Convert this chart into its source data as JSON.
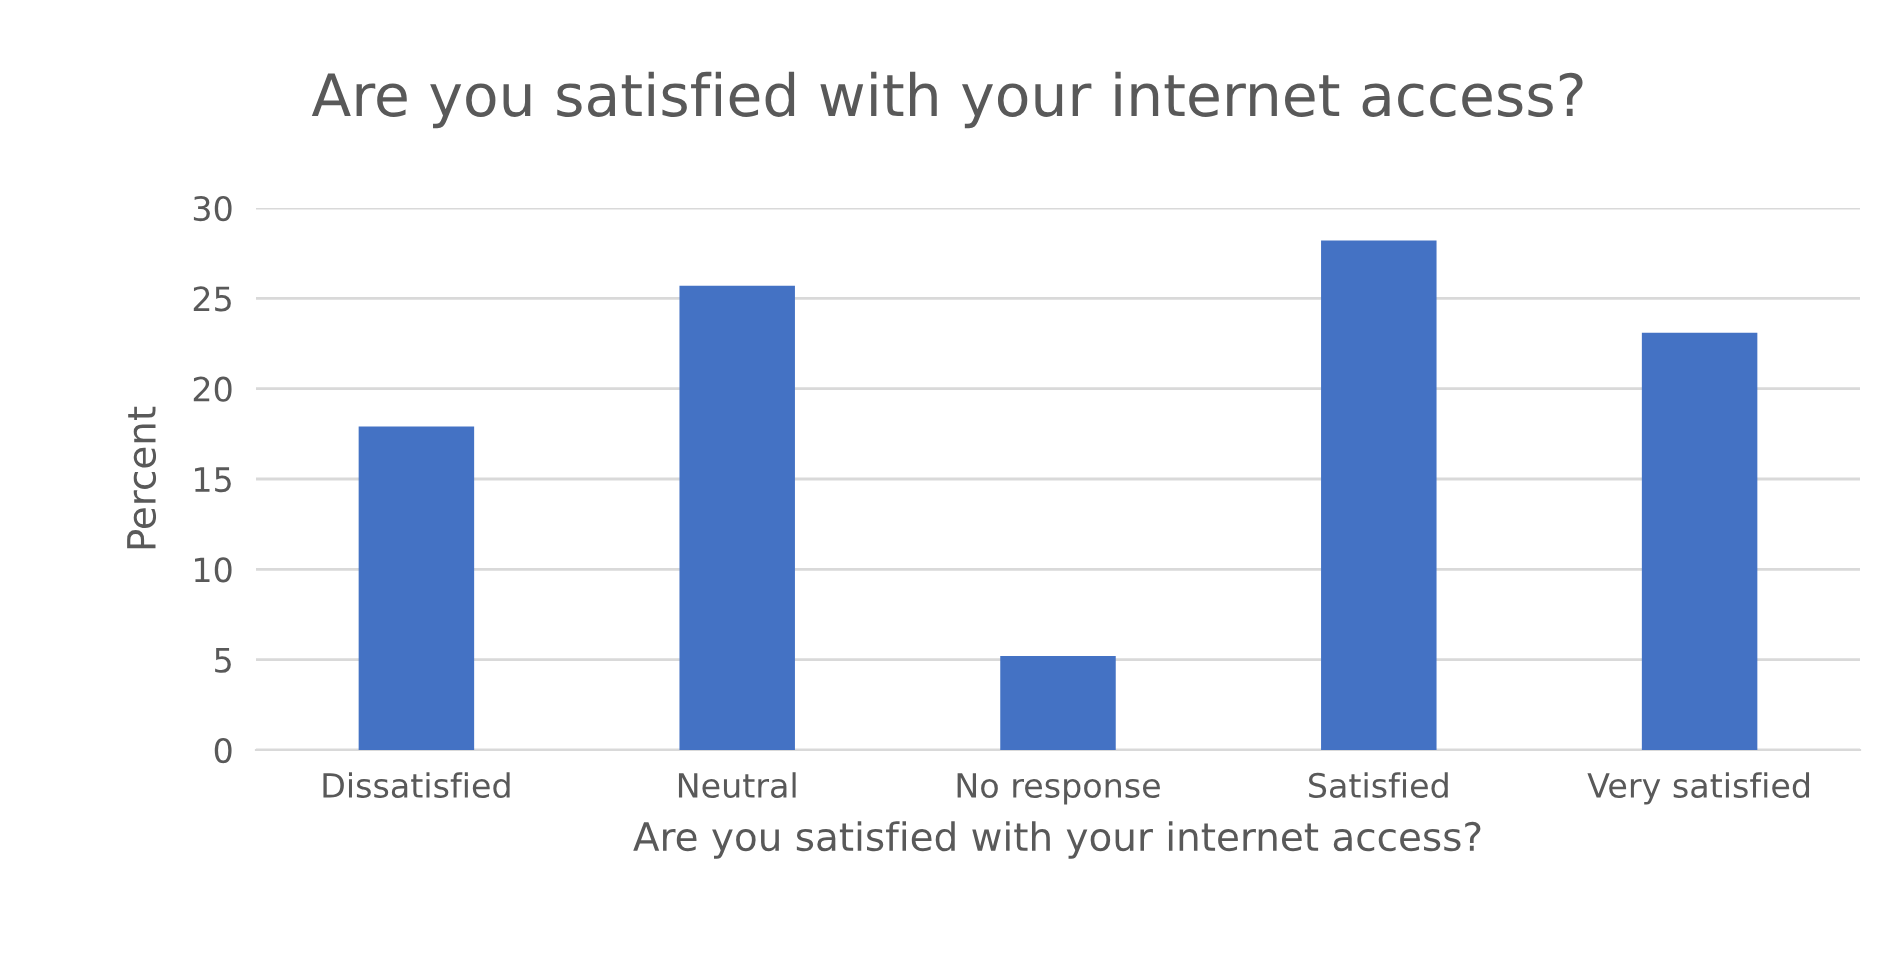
{
  "chart_data": {
    "type": "bar",
    "title": "Are you satisfied with your internet access?",
    "xlabel": "Are you satisfied with your internet access?",
    "ylabel": "Percent",
    "categories": [
      "Dissatisfied",
      "Neutral",
      "No response",
      "Satisfied",
      "Very satisfied"
    ],
    "values": [
      17.9,
      25.7,
      5.2,
      28.2,
      23.1
    ],
    "color": "#4472c4",
    "ylim": [
      0,
      30
    ],
    "yticks": [
      0,
      5,
      10,
      15,
      20,
      25,
      30
    ],
    "grid": "y",
    "legend": false
  }
}
